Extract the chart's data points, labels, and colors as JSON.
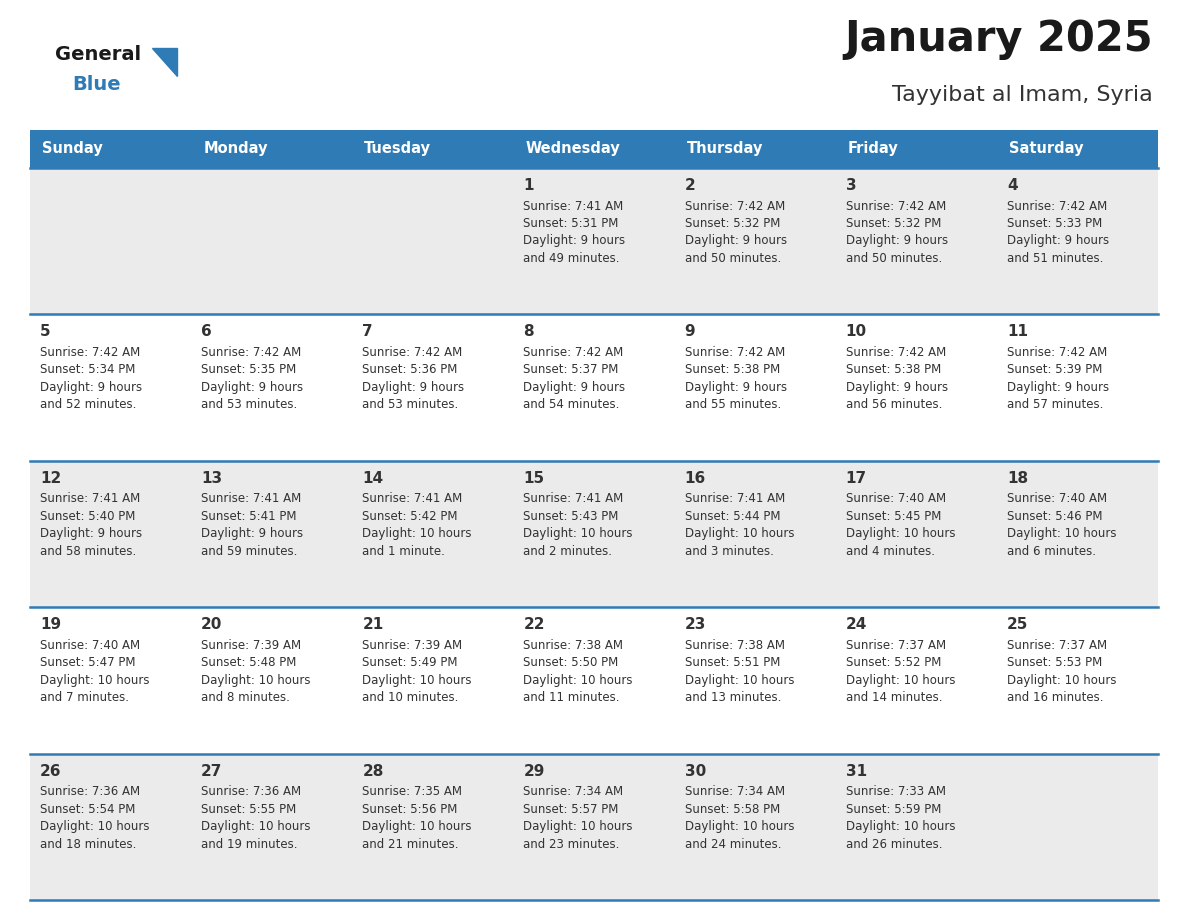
{
  "title": "January 2025",
  "subtitle": "Tayyibat al Imam, Syria",
  "days_of_week": [
    "Sunday",
    "Monday",
    "Tuesday",
    "Wednesday",
    "Thursday",
    "Friday",
    "Saturday"
  ],
  "header_bg": "#2E7BB5",
  "header_text": "#FFFFFF",
  "row_bg_odd": "#EBEBEB",
  "row_bg_even": "#FFFFFF",
  "day_num_color": "#333333",
  "cell_text_color": "#333333",
  "row_border_color": "#2E7BB5",
  "title_color": "#1a1a1a",
  "subtitle_color": "#333333",
  "logo_general_color": "#1a1a1a",
  "logo_blue_color": "#2E7BB5",
  "calendar": [
    [
      null,
      null,
      null,
      {
        "day": 1,
        "sunrise": "7:41 AM",
        "sunset": "5:31 PM",
        "daylight": "9 hours",
        "daylight2": "and 49 minutes."
      },
      {
        "day": 2,
        "sunrise": "7:42 AM",
        "sunset": "5:32 PM",
        "daylight": "9 hours",
        "daylight2": "and 50 minutes."
      },
      {
        "day": 3,
        "sunrise": "7:42 AM",
        "sunset": "5:32 PM",
        "daylight": "9 hours",
        "daylight2": "and 50 minutes."
      },
      {
        "day": 4,
        "sunrise": "7:42 AM",
        "sunset": "5:33 PM",
        "daylight": "9 hours",
        "daylight2": "and 51 minutes."
      }
    ],
    [
      {
        "day": 5,
        "sunrise": "7:42 AM",
        "sunset": "5:34 PM",
        "daylight": "9 hours",
        "daylight2": "and 52 minutes."
      },
      {
        "day": 6,
        "sunrise": "7:42 AM",
        "sunset": "5:35 PM",
        "daylight": "9 hours",
        "daylight2": "and 53 minutes."
      },
      {
        "day": 7,
        "sunrise": "7:42 AM",
        "sunset": "5:36 PM",
        "daylight": "9 hours",
        "daylight2": "and 53 minutes."
      },
      {
        "day": 8,
        "sunrise": "7:42 AM",
        "sunset": "5:37 PM",
        "daylight": "9 hours",
        "daylight2": "and 54 minutes."
      },
      {
        "day": 9,
        "sunrise": "7:42 AM",
        "sunset": "5:38 PM",
        "daylight": "9 hours",
        "daylight2": "and 55 minutes."
      },
      {
        "day": 10,
        "sunrise": "7:42 AM",
        "sunset": "5:38 PM",
        "daylight": "9 hours",
        "daylight2": "and 56 minutes."
      },
      {
        "day": 11,
        "sunrise": "7:42 AM",
        "sunset": "5:39 PM",
        "daylight": "9 hours",
        "daylight2": "and 57 minutes."
      }
    ],
    [
      {
        "day": 12,
        "sunrise": "7:41 AM",
        "sunset": "5:40 PM",
        "daylight": "9 hours",
        "daylight2": "and 58 minutes."
      },
      {
        "day": 13,
        "sunrise": "7:41 AM",
        "sunset": "5:41 PM",
        "daylight": "9 hours",
        "daylight2": "and 59 minutes."
      },
      {
        "day": 14,
        "sunrise": "7:41 AM",
        "sunset": "5:42 PM",
        "daylight": "10 hours",
        "daylight2": "and 1 minute."
      },
      {
        "day": 15,
        "sunrise": "7:41 AM",
        "sunset": "5:43 PM",
        "daylight": "10 hours",
        "daylight2": "and 2 minutes."
      },
      {
        "day": 16,
        "sunrise": "7:41 AM",
        "sunset": "5:44 PM",
        "daylight": "10 hours",
        "daylight2": "and 3 minutes."
      },
      {
        "day": 17,
        "sunrise": "7:40 AM",
        "sunset": "5:45 PM",
        "daylight": "10 hours",
        "daylight2": "and 4 minutes."
      },
      {
        "day": 18,
        "sunrise": "7:40 AM",
        "sunset": "5:46 PM",
        "daylight": "10 hours",
        "daylight2": "and 6 minutes."
      }
    ],
    [
      {
        "day": 19,
        "sunrise": "7:40 AM",
        "sunset": "5:47 PM",
        "daylight": "10 hours",
        "daylight2": "and 7 minutes."
      },
      {
        "day": 20,
        "sunrise": "7:39 AM",
        "sunset": "5:48 PM",
        "daylight": "10 hours",
        "daylight2": "and 8 minutes."
      },
      {
        "day": 21,
        "sunrise": "7:39 AM",
        "sunset": "5:49 PM",
        "daylight": "10 hours",
        "daylight2": "and 10 minutes."
      },
      {
        "day": 22,
        "sunrise": "7:38 AM",
        "sunset": "5:50 PM",
        "daylight": "10 hours",
        "daylight2": "and 11 minutes."
      },
      {
        "day": 23,
        "sunrise": "7:38 AM",
        "sunset": "5:51 PM",
        "daylight": "10 hours",
        "daylight2": "and 13 minutes."
      },
      {
        "day": 24,
        "sunrise": "7:37 AM",
        "sunset": "5:52 PM",
        "daylight": "10 hours",
        "daylight2": "and 14 minutes."
      },
      {
        "day": 25,
        "sunrise": "7:37 AM",
        "sunset": "5:53 PM",
        "daylight": "10 hours",
        "daylight2": "and 16 minutes."
      }
    ],
    [
      {
        "day": 26,
        "sunrise": "7:36 AM",
        "sunset": "5:54 PM",
        "daylight": "10 hours",
        "daylight2": "and 18 minutes."
      },
      {
        "day": 27,
        "sunrise": "7:36 AM",
        "sunset": "5:55 PM",
        "daylight": "10 hours",
        "daylight2": "and 19 minutes."
      },
      {
        "day": 28,
        "sunrise": "7:35 AM",
        "sunset": "5:56 PM",
        "daylight": "10 hours",
        "daylight2": "and 21 minutes."
      },
      {
        "day": 29,
        "sunrise": "7:34 AM",
        "sunset": "5:57 PM",
        "daylight": "10 hours",
        "daylight2": "and 23 minutes."
      },
      {
        "day": 30,
        "sunrise": "7:34 AM",
        "sunset": "5:58 PM",
        "daylight": "10 hours",
        "daylight2": "and 24 minutes."
      },
      {
        "day": 31,
        "sunrise": "7:33 AM",
        "sunset": "5:59 PM",
        "daylight": "10 hours",
        "daylight2": "and 26 minutes."
      },
      null
    ]
  ]
}
